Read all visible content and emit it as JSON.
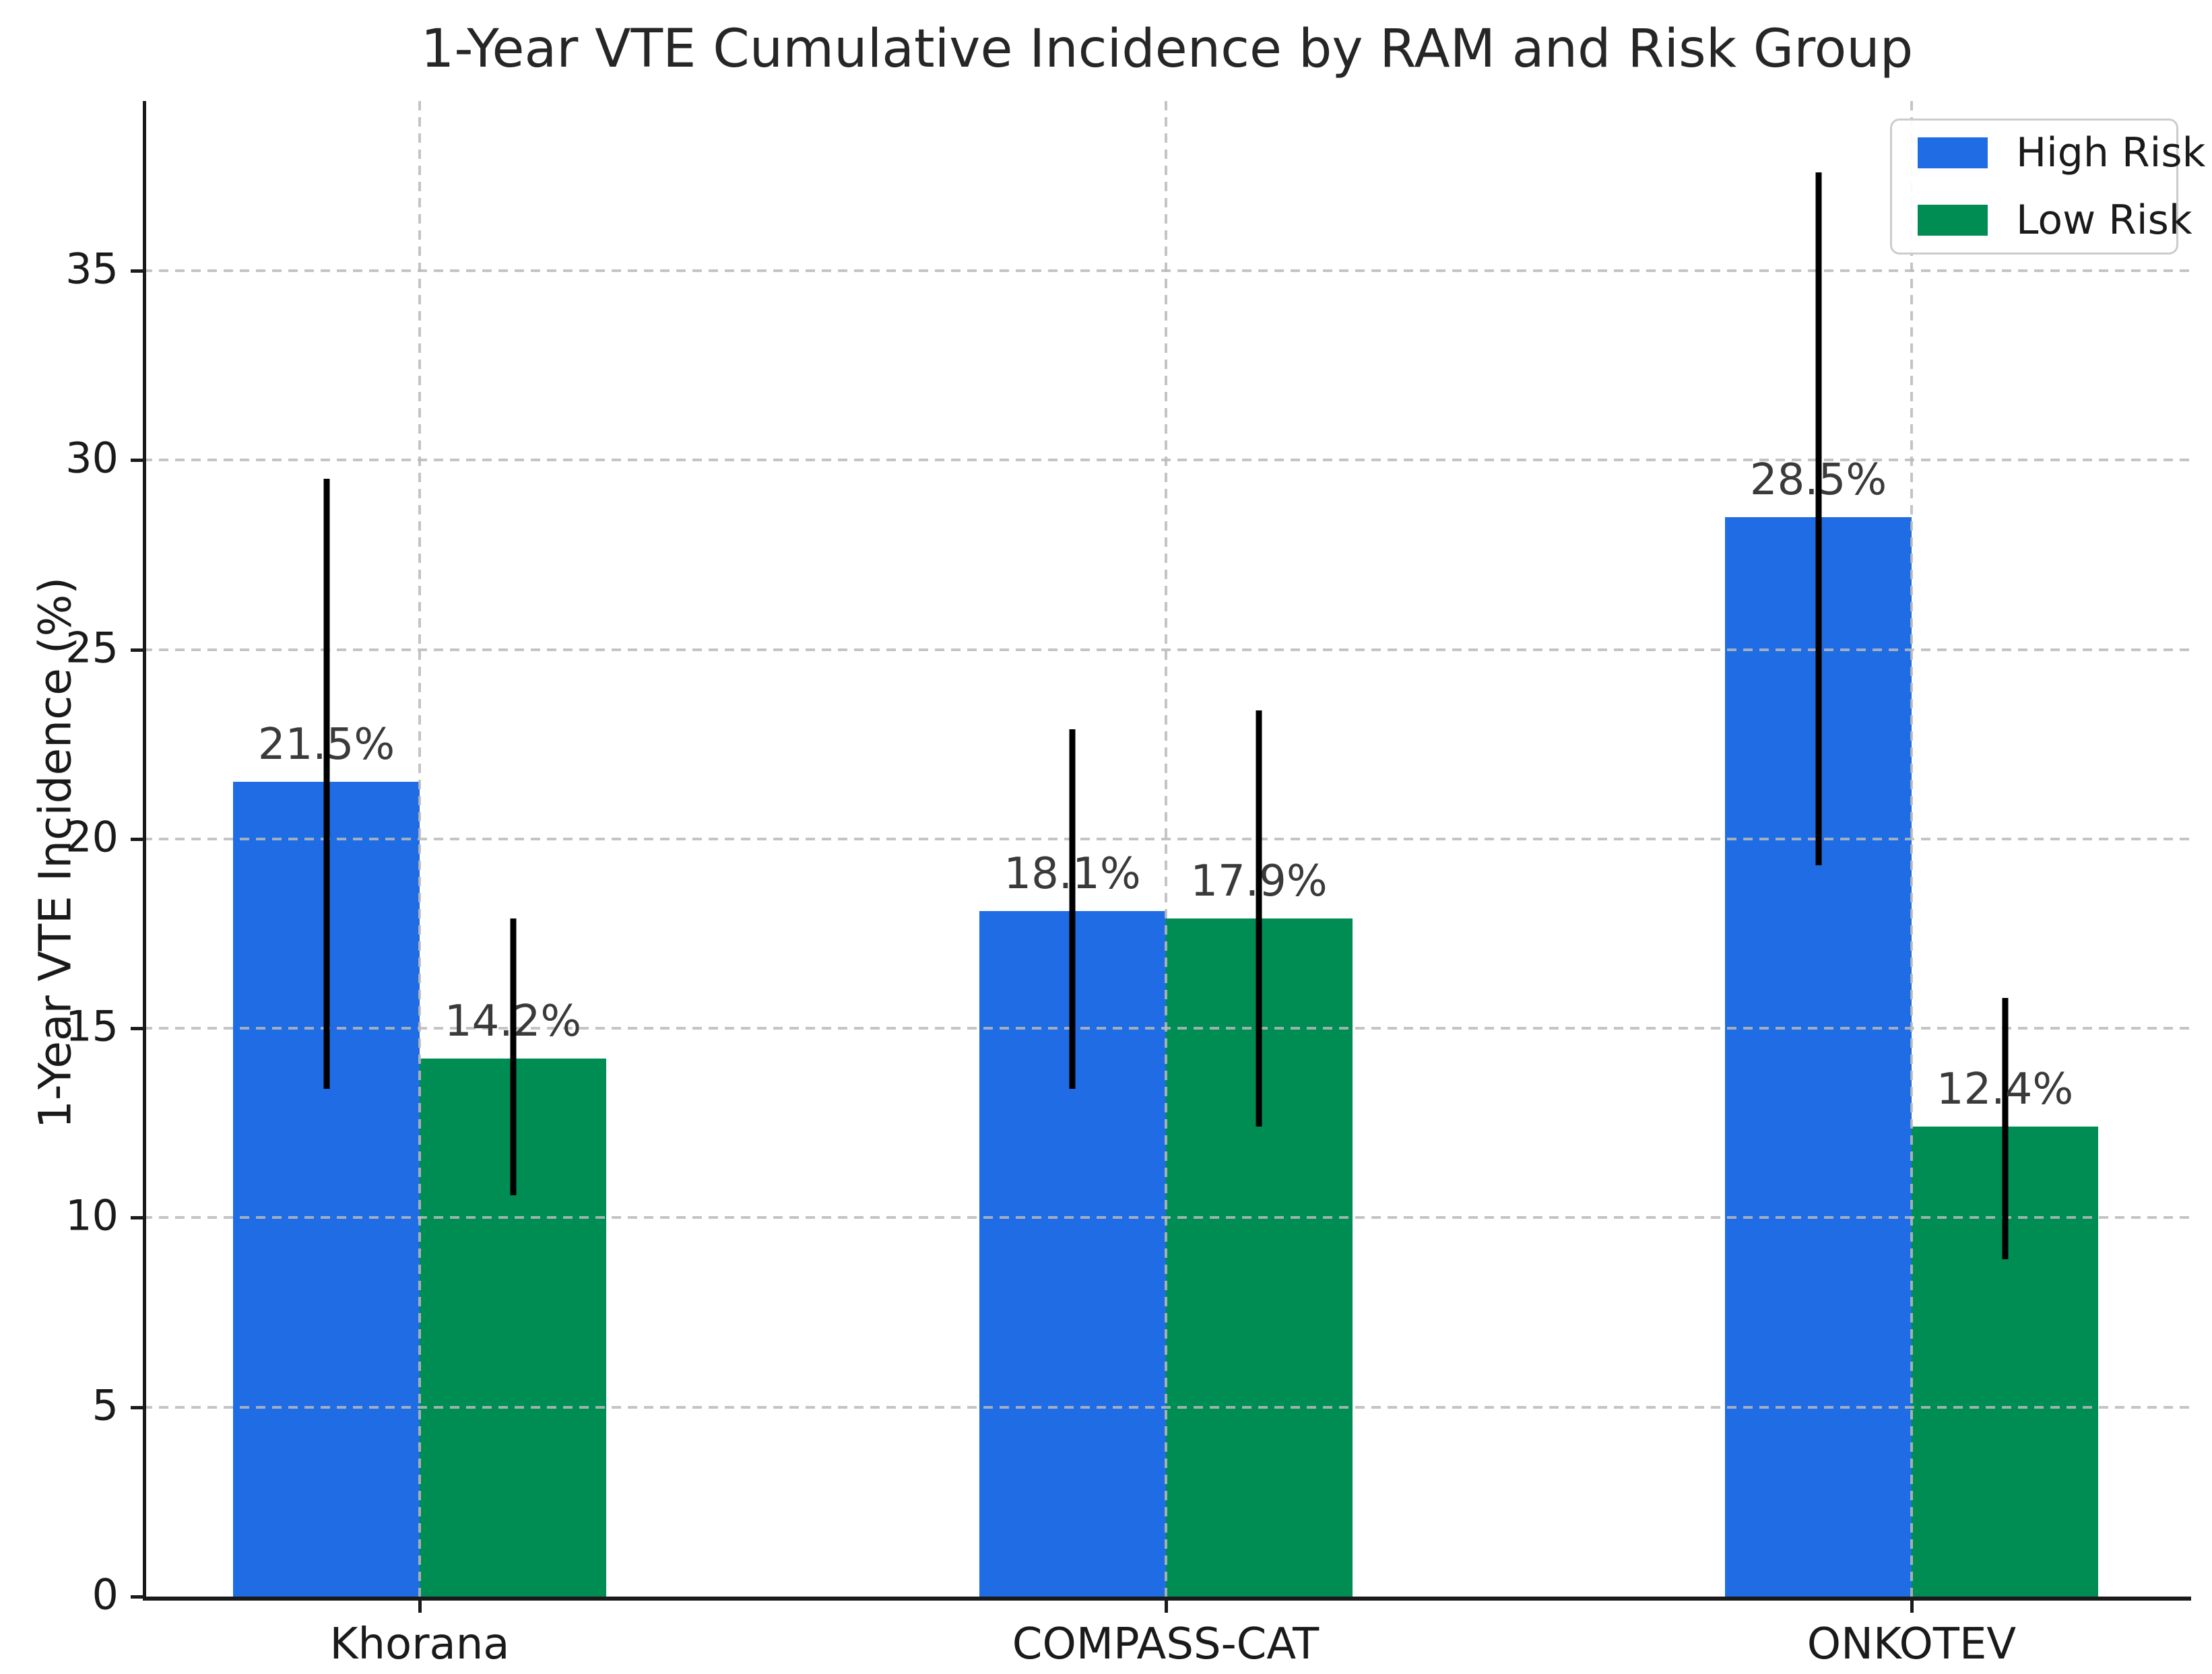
{
  "figure": {
    "title": "1-Year VTE Cumulative Incidence by RAM and Risk Group",
    "ylabel": "1-Year VTE Incidence (%)"
  },
  "chart_data": {
    "type": "bar",
    "title": "1-Year VTE Cumulative Incidence by RAM and Risk Group",
    "xlabel": "",
    "ylabel": "1-Year VTE Incidence (%)",
    "categories": [
      "Khorana",
      "COMPASS-CAT",
      "ONKOTEV"
    ],
    "series": [
      {
        "name": "High Risk",
        "color": "#206CE4",
        "values": [
          21.5,
          18.1,
          28.5
        ],
        "value_labels": [
          "21.5%",
          "18.1%",
          "28.5%"
        ],
        "err_low": [
          13.4,
          13.4,
          19.3
        ],
        "err_high": [
          29.5,
          22.9,
          37.6
        ]
      },
      {
        "name": "Low Risk",
        "color": "#008D54",
        "values": [
          14.2,
          17.9,
          12.4
        ],
        "value_labels": [
          "14.2%",
          "17.9%",
          "12.4%"
        ],
        "err_low": [
          10.6,
          12.4,
          8.9
        ],
        "err_high": [
          17.9,
          23.4,
          15.8
        ]
      }
    ],
    "yticks": [
      0,
      5,
      10,
      15,
      20,
      25,
      30,
      35
    ],
    "ylim": [
      0,
      39.5
    ],
    "grid": true,
    "grid_style": "dashed",
    "grid_above_bars": true,
    "error_bars": true,
    "error_bar_color": "#000000",
    "legend": {
      "position": "upper right",
      "entries": [
        "High Risk",
        "Low Risk"
      ]
    }
  }
}
